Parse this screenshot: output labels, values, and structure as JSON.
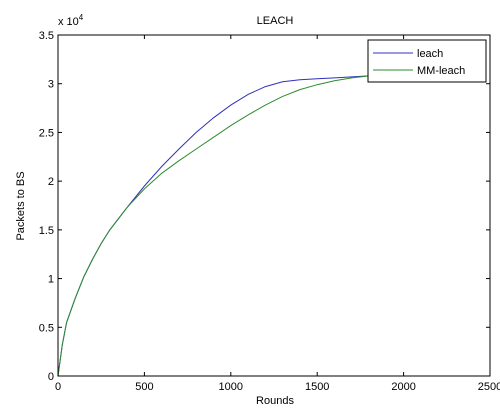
{
  "chart_data": {
    "type": "line",
    "title": "LEACH",
    "xlabel": "Rounds",
    "ylabel": "Packets to BS",
    "y_exponent_label": "x 10",
    "y_exponent_power": "4",
    "xlim": [
      0,
      2500
    ],
    "ylim": [
      0,
      3.5
    ],
    "x_ticks": [
      "0",
      "500",
      "1000",
      "1500",
      "2000",
      "2500"
    ],
    "y_ticks": [
      "0",
      "0.5",
      "1",
      "1.5",
      "2",
      "2.5",
      "3",
      "3.5"
    ],
    "grid": false,
    "legend_position": "top-right",
    "series": [
      {
        "name": "leach",
        "color": "#3030c0",
        "x": [
          0,
          25,
          50,
          100,
          150,
          200,
          250,
          300,
          400,
          500,
          600,
          700,
          800,
          900,
          1000,
          1100,
          1200,
          1300,
          1400,
          1500,
          1600,
          1700,
          1800,
          1900,
          2000,
          2100,
          2200,
          2300,
          2400
        ],
        "y": [
          0,
          0.32,
          0.55,
          0.8,
          1.02,
          1.2,
          1.36,
          1.5,
          1.73,
          1.95,
          2.15,
          2.33,
          2.5,
          2.65,
          2.78,
          2.89,
          2.97,
          3.02,
          3.04,
          3.05,
          3.06,
          3.07,
          3.08,
          3.085,
          3.09,
          3.09,
          3.09,
          3.09,
          3.09
        ]
      },
      {
        "name": "MM-leach",
        "color": "#2e8b2e",
        "x": [
          0,
          25,
          50,
          100,
          150,
          200,
          250,
          300,
          400,
          500,
          600,
          700,
          800,
          900,
          1000,
          1100,
          1200,
          1300,
          1400,
          1500,
          1600,
          1700,
          1800,
          1900,
          2000,
          2100,
          2200,
          2300,
          2400
        ],
        "y": [
          0,
          0.32,
          0.55,
          0.8,
          1.02,
          1.2,
          1.36,
          1.5,
          1.73,
          1.92,
          2.08,
          2.21,
          2.33,
          2.45,
          2.57,
          2.68,
          2.78,
          2.87,
          2.94,
          2.99,
          3.03,
          3.06,
          3.08,
          3.09,
          3.09,
          3.09,
          3.09,
          3.09,
          3.09
        ]
      }
    ]
  }
}
